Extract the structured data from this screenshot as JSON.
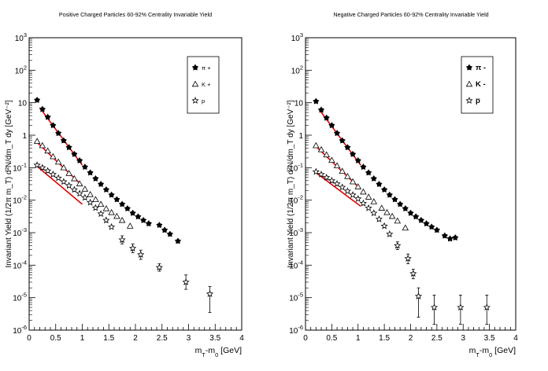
{
  "colors": {
    "frame": "#000000",
    "fit": "#e00000",
    "background": "#ffffff"
  },
  "chart_data": [
    {
      "type": "scatter",
      "title": "Positive Charged Particles 60-92% Centrality Invariable Yield",
      "xlabel": "m_T-m_0 [GeV]",
      "ylabel": "Invariant Yield (1/2π m_T) d²N/dm_T dy [GeV⁻²]",
      "y_scale": "log",
      "xlim": [
        0,
        4
      ],
      "ylim": [
        1e-06,
        1000
      ],
      "x_ticks": [
        "0",
        "0.5",
        "1",
        "1.5",
        "2",
        "2.5",
        "3",
        "3.5",
        "4"
      ],
      "y_ticks": [
        "10^-6",
        "10^-5",
        "10^-4",
        "10^-3",
        "10^-2",
        "10^-1",
        "1",
        "10",
        "10^2",
        "10^3"
      ],
      "legend_position": "top-right",
      "series": [
        {
          "name": "π +",
          "marker": "filled-star",
          "points": [
            [
              0.15,
              12
            ],
            [
              0.25,
              6.3
            ],
            [
              0.35,
              3.6
            ],
            [
              0.45,
              2.0
            ],
            [
              0.55,
              1.15
            ],
            [
              0.65,
              0.68
            ],
            [
              0.75,
              0.42
            ],
            [
              0.85,
              0.26
            ],
            [
              0.95,
              0.165
            ],
            [
              1.05,
              0.105
            ],
            [
              1.15,
              0.07
            ],
            [
              1.25,
              0.046
            ],
            [
              1.35,
              0.031
            ],
            [
              1.45,
              0.021
            ],
            [
              1.55,
              0.0145
            ],
            [
              1.65,
              0.0105
            ],
            [
              1.75,
              0.0075
            ],
            [
              1.85,
              0.0055
            ],
            [
              1.95,
              0.004
            ],
            [
              2.05,
              0.0031
            ],
            [
              2.15,
              0.0024
            ],
            [
              2.25,
              0.0019
            ],
            [
              2.45,
              0.0017
            ],
            [
              2.55,
              0.0012
            ],
            [
              2.65,
              0.0009
            ],
            [
              2.8,
              0.00055
            ]
          ],
          "fit": [
            [
              0.2,
              7.0
            ],
            [
              1.0,
              0.12
            ]
          ]
        },
        {
          "name": "K +",
          "marker": "open-triangle",
          "points": [
            [
              0.15,
              0.65
            ],
            [
              0.25,
              0.48
            ],
            [
              0.35,
              0.33
            ],
            [
              0.45,
              0.22
            ],
            [
              0.55,
              0.15
            ],
            [
              0.65,
              0.1
            ],
            [
              0.75,
              0.067
            ],
            [
              0.85,
              0.046
            ],
            [
              0.95,
              0.032
            ],
            [
              1.05,
              0.022
            ],
            [
              1.15,
              0.015
            ],
            [
              1.25,
              0.0105
            ],
            [
              1.35,
              0.0075
            ],
            [
              1.45,
              0.0055
            ],
            [
              1.55,
              0.0042
            ],
            [
              1.65,
              0.0032
            ],
            [
              1.75,
              0.0024
            ],
            [
              1.9,
              0.0016
            ]
          ],
          "fit": [
            [
              0.15,
              0.6
            ],
            [
              1.0,
              0.028
            ]
          ]
        },
        {
          "name": "p",
          "marker": "open-star",
          "points": [
            [
              0.15,
              0.12
            ],
            [
              0.25,
              0.1
            ],
            [
              0.35,
              0.08
            ],
            [
              0.45,
              0.062
            ],
            [
              0.55,
              0.048
            ],
            [
              0.65,
              0.037
            ],
            [
              0.75,
              0.028
            ],
            [
              0.85,
              0.021
            ],
            [
              0.95,
              0.016
            ],
            [
              1.05,
              0.012
            ],
            [
              1.15,
              0.0085
            ],
            [
              1.25,
              0.0058
            ],
            [
              1.35,
              0.0038
            ],
            [
              1.45,
              0.0024
            ],
            [
              1.55,
              0.0015
            ],
            [
              1.75,
              0.0006
            ],
            [
              1.95,
              0.00033
            ],
            [
              2.1,
              0.00021
            ],
            [
              2.45,
              8.5e-05
            ],
            [
              2.95,
              3e-05
            ],
            [
              3.4,
              1.3e-05
            ]
          ],
          "errors": [
            null,
            null,
            null,
            null,
            null,
            null,
            null,
            null,
            null,
            null,
            null,
            null,
            null,
            null,
            null,
            [
              0.00045,
              0.0008
            ],
            [
              0.00024,
              0.00045
            ],
            [
              0.00015,
              0.00029
            ],
            [
              6.5e-05,
              0.00011
            ],
            [
              1.8e-05,
              5e-05
            ],
            [
              3.5e-06,
              2.2e-05
            ]
          ],
          "fit": [
            [
              0.15,
              0.11
            ],
            [
              1.0,
              0.0075
            ]
          ]
        }
      ]
    },
    {
      "type": "scatter",
      "title": "Negative Charged Particles 60-92% Centrality Invariable Yield",
      "xlabel": "m_T-m_0 [GeV]",
      "ylabel": "Invariant Yield (1/2π m_T) d²N/dm_T dy [GeV⁻²]",
      "y_scale": "log",
      "xlim": [
        0,
        4
      ],
      "ylim": [
        1e-06,
        1000
      ],
      "x_ticks": [
        "0",
        "0.5",
        "1",
        "1.5",
        "2",
        "2.5",
        "3",
        "3.5",
        "4"
      ],
      "y_ticks": [
        "10^-6",
        "10^-5",
        "10^-4",
        "10^-3",
        "10^-2",
        "10^-1",
        "1",
        "10",
        "10^2",
        "10^3"
      ],
      "legend_position": "top-right",
      "series": [
        {
          "name": "π -",
          "marker": "filled-star",
          "points": [
            [
              0.2,
              11
            ],
            [
              0.3,
              6.0
            ],
            [
              0.4,
              3.4
            ],
            [
              0.5,
              2.0
            ],
            [
              0.6,
              1.15
            ],
            [
              0.7,
              0.68
            ],
            [
              0.8,
              0.42
            ],
            [
              0.9,
              0.26
            ],
            [
              1.0,
              0.165
            ],
            [
              1.1,
              0.105
            ],
            [
              1.2,
              0.07
            ],
            [
              1.3,
              0.046
            ],
            [
              1.4,
              0.031
            ],
            [
              1.5,
              0.021
            ],
            [
              1.6,
              0.0145
            ],
            [
              1.7,
              0.0105
            ],
            [
              1.8,
              0.0075
            ],
            [
              1.9,
              0.0055
            ],
            [
              2.0,
              0.004
            ],
            [
              2.1,
              0.0031
            ],
            [
              2.2,
              0.0024
            ],
            [
              2.3,
              0.0019
            ],
            [
              2.4,
              0.0015
            ],
            [
              2.5,
              0.0012
            ],
            [
              2.65,
              0.0008
            ],
            [
              2.75,
              0.00065
            ],
            [
              2.85,
              0.0007
            ]
          ],
          "fit": [
            [
              0.25,
              6.5
            ],
            [
              1.05,
              0.12
            ]
          ]
        },
        {
          "name": "K -",
          "marker": "open-triangle",
          "points": [
            [
              0.2,
              0.48
            ],
            [
              0.3,
              0.36
            ],
            [
              0.4,
              0.25
            ],
            [
              0.5,
              0.17
            ],
            [
              0.6,
              0.115
            ],
            [
              0.7,
              0.078
            ],
            [
              0.8,
              0.054
            ],
            [
              0.9,
              0.037
            ],
            [
              1.0,
              0.026
            ],
            [
              1.1,
              0.018
            ],
            [
              1.2,
              0.0125
            ],
            [
              1.3,
              0.009
            ],
            [
              1.45,
              0.0057
            ],
            [
              1.55,
              0.0042
            ],
            [
              1.65,
              0.0032
            ],
            [
              1.75,
              0.0023
            ],
            [
              1.9,
              0.0014
            ]
          ],
          "fit": [
            [
              0.2,
              0.45
            ],
            [
              1.05,
              0.022
            ]
          ]
        },
        {
          "name": "p̅",
          "marker": "open-star",
          "points": [
            [
              0.2,
              0.075
            ],
            [
              0.3,
              0.062
            ],
            [
              0.4,
              0.05
            ],
            [
              0.5,
              0.04
            ],
            [
              0.6,
              0.032
            ],
            [
              0.7,
              0.025
            ],
            [
              0.8,
              0.019
            ],
            [
              0.9,
              0.0145
            ],
            [
              1.0,
              0.011
            ],
            [
              1.1,
              0.008
            ],
            [
              1.2,
              0.0057
            ],
            [
              1.3,
              0.004
            ],
            [
              1.4,
              0.0026
            ],
            [
              1.5,
              0.0016
            ],
            [
              1.6,
              0.0009
            ],
            [
              1.75,
              0.0004
            ],
            [
              1.95,
              0.00016
            ],
            [
              2.05,
              5.5e-05
            ],
            [
              2.15,
              1.1e-05
            ],
            [
              2.45,
              5e-06
            ],
            [
              2.95,
              5e-06
            ],
            [
              3.45,
              5e-06
            ]
          ],
          "errors": [
            null,
            null,
            null,
            null,
            null,
            null,
            null,
            null,
            null,
            null,
            null,
            null,
            null,
            null,
            null,
            [
              0.0003,
              0.00052
            ],
            [
              0.00011,
              0.00022
            ],
            [
              3.8e-05,
              7.5e-05
            ],
            [
              2.5e-06,
              2e-05
            ],
            [
              1.5e-06,
              1.2e-05
            ],
            [
              1.5e-06,
              1.2e-05
            ],
            [
              1.5e-06,
              1.2e-05
            ]
          ],
          "fit": [
            [
              0.2,
              0.07
            ],
            [
              1.05,
              0.0065
            ]
          ]
        }
      ]
    }
  ]
}
